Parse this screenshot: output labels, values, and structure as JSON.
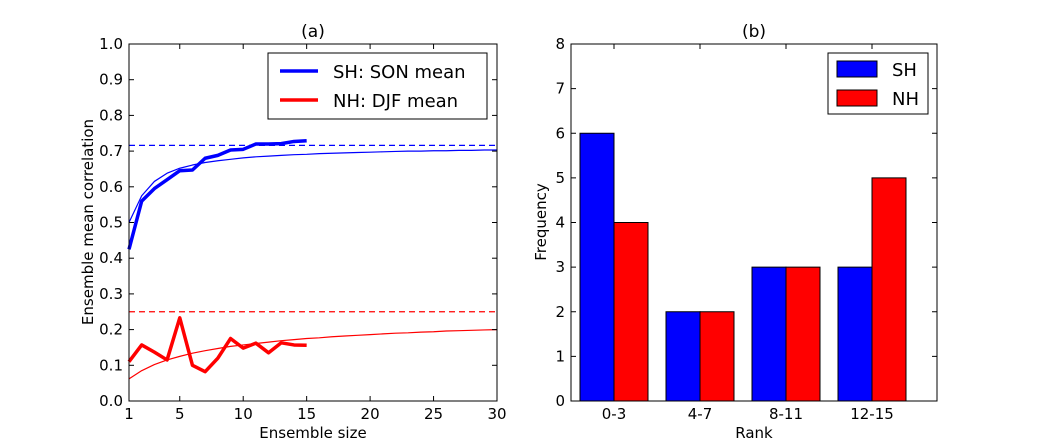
{
  "chart_data": [
    {
      "type": "line",
      "title": "(a)",
      "xlabel": "Ensemble size",
      "ylabel": "Ensemble mean correlation",
      "xlim": [
        1,
        30
      ],
      "ylim": [
        0.0,
        1.0
      ],
      "xticks": [
        "1",
        "5",
        "10",
        "15",
        "20",
        "25",
        "30"
      ],
      "yticks": [
        "0.0",
        "0.1",
        "0.2",
        "0.3",
        "0.4",
        "0.5",
        "0.6",
        "0.7",
        "0.8",
        "0.9",
        "1.0"
      ],
      "legend_position": "top-right",
      "series": [
        {
          "name": "SH: SON mean",
          "color": "#0000ff",
          "style": "thick",
          "x": [
            1,
            2,
            3,
            4,
            5,
            6,
            7,
            8,
            9,
            10,
            11,
            12,
            13,
            14,
            15
          ],
          "y": [
            0.425,
            0.56,
            0.595,
            0.62,
            0.645,
            0.647,
            0.68,
            0.688,
            0.703,
            0.705,
            0.72,
            0.72,
            0.721,
            0.727,
            0.729
          ]
        },
        {
          "name": "NH: DJF mean",
          "color": "#ff0000",
          "style": "thick",
          "x": [
            1,
            2,
            3,
            4,
            5,
            6,
            7,
            8,
            9,
            10,
            11,
            12,
            13,
            14,
            15
          ],
          "y": [
            0.11,
            0.157,
            0.137,
            0.115,
            0.233,
            0.1,
            0.082,
            0.12,
            0.175,
            0.148,
            0.162,
            0.135,
            0.163,
            0.157,
            0.156
          ]
        },
        {
          "color": "#0000ff",
          "style": "thin",
          "x": [
            1,
            2,
            3,
            4,
            5,
            6,
            7,
            8,
            9,
            10,
            11,
            12,
            13,
            14,
            15,
            16,
            17,
            18,
            19,
            20,
            21,
            22,
            23,
            24,
            25,
            26,
            27,
            28,
            29,
            30
          ],
          "y": [
            0.5,
            0.575,
            0.615,
            0.638,
            0.652,
            0.661,
            0.668,
            0.673,
            0.677,
            0.681,
            0.684,
            0.686,
            0.688,
            0.69,
            0.691,
            0.693,
            0.694,
            0.695,
            0.696,
            0.697,
            0.698,
            0.699,
            0.7,
            0.7,
            0.701,
            0.701,
            0.702,
            0.702,
            0.703,
            0.703
          ]
        },
        {
          "color": "#ff0000",
          "style": "thin",
          "x": [
            1,
            2,
            3,
            4,
            5,
            6,
            7,
            8,
            9,
            10,
            11,
            12,
            13,
            14,
            15,
            16,
            17,
            18,
            19,
            20,
            21,
            22,
            23,
            24,
            25,
            26,
            27,
            28,
            29,
            30
          ],
          "y": [
            0.062,
            0.085,
            0.102,
            0.115,
            0.125,
            0.134,
            0.141,
            0.147,
            0.153,
            0.157,
            0.161,
            0.165,
            0.169,
            0.172,
            0.175,
            0.177,
            0.18,
            0.182,
            0.184,
            0.186,
            0.188,
            0.19,
            0.191,
            0.193,
            0.194,
            0.196,
            0.197,
            0.198,
            0.199,
            0.2
          ]
        },
        {
          "color": "#0000ff",
          "style": "dashed",
          "x": [
            1,
            30
          ],
          "y": [
            0.716,
            0.716
          ]
        },
        {
          "color": "#ff0000",
          "style": "dashed",
          "x": [
            1,
            30
          ],
          "y": [
            0.25,
            0.25
          ]
        }
      ]
    },
    {
      "type": "bar",
      "title": "(b)",
      "xlabel": "Rank",
      "ylabel": "Frequency",
      "ylim": [
        0,
        8
      ],
      "yticks": [
        "0",
        "1",
        "2",
        "3",
        "4",
        "5",
        "6",
        "7",
        "8"
      ],
      "categories": [
        "0-3",
        "4-7",
        "8-11",
        "12-15"
      ],
      "legend_position": "top-right",
      "series": [
        {
          "name": "SH",
          "color": "#0000ff",
          "values": [
            6,
            2,
            3,
            3
          ]
        },
        {
          "name": "NH",
          "color": "#ff0000",
          "values": [
            4,
            2,
            3,
            5
          ]
        }
      ]
    }
  ]
}
